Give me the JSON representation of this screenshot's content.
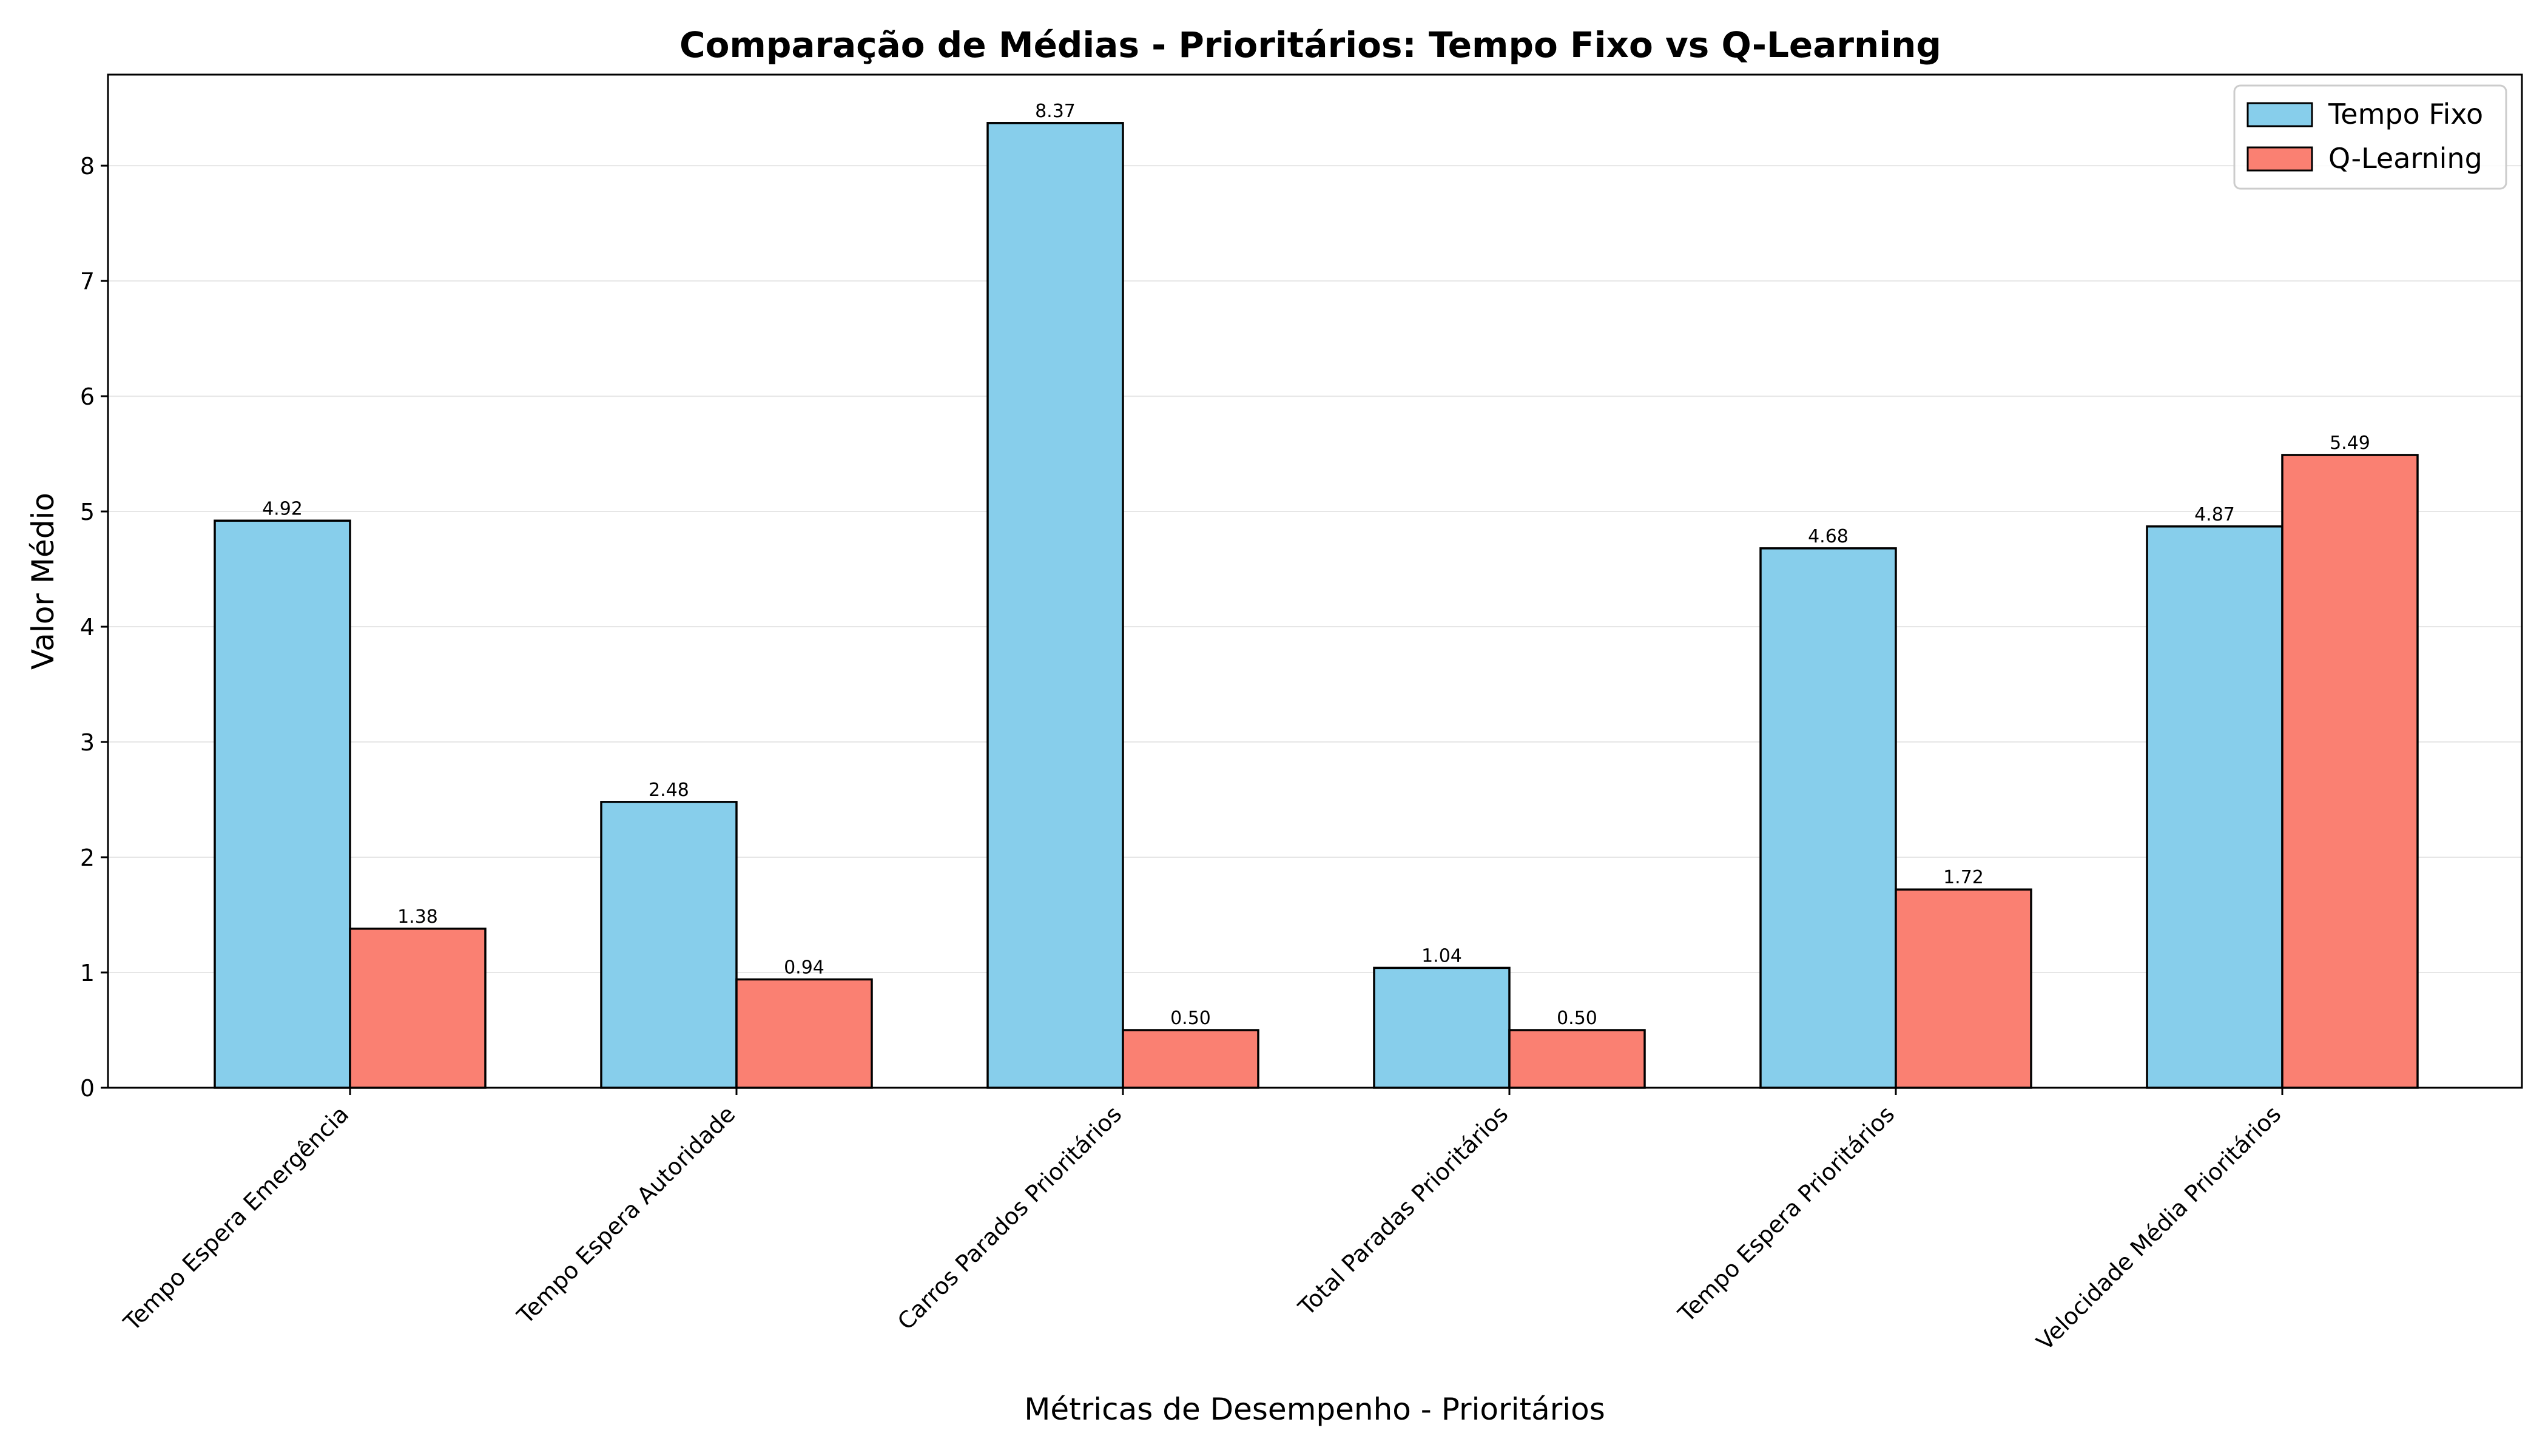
{
  "chart_data": {
    "type": "bar",
    "title": "Comparação de Médias - Prioritários: Tempo Fixo vs Q-Learning",
    "xlabel": "Métricas de Desempenho - Prioritários",
    "ylabel": "Valor Médio",
    "categories": [
      "Tempo Espera Emergência",
      "Tempo Espera Autoridade",
      "Carros Parados Prioritários",
      "Total Paradas Prioritários",
      "Tempo Espera Prioritários",
      "Velocidade Média Prioritários"
    ],
    "series": [
      {
        "name": "Tempo Fixo",
        "color": "#87ceeb",
        "values": [
          4.92,
          2.48,
          8.37,
          1.04,
          4.68,
          4.87
        ],
        "labels": [
          "4.92",
          "2.48",
          "8.37",
          "1.04",
          "4.68",
          "4.87"
        ]
      },
      {
        "name": "Q-Learning",
        "color": "#fa8072",
        "values": [
          1.38,
          0.94,
          0.5,
          0.5,
          1.72,
          5.49
        ],
        "labels": [
          "1.38",
          "0.94",
          "0.50",
          "0.50",
          "1.72",
          "5.49"
        ]
      }
    ],
    "ylim": [
      0,
      8.79
    ],
    "yticks": [
      "0",
      "1",
      "2",
      "3",
      "4",
      "5",
      "6",
      "7",
      "8"
    ],
    "grid": "y",
    "legend_position": "top-right"
  }
}
